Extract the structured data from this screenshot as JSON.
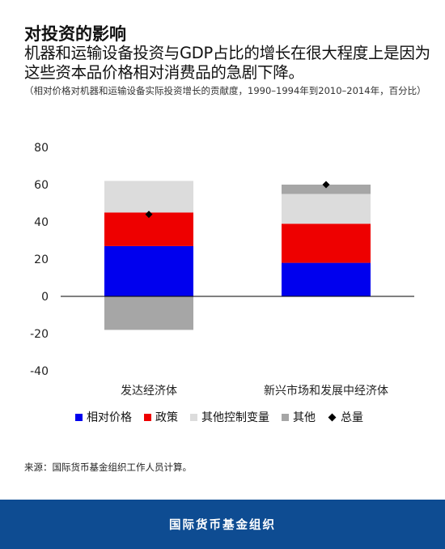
{
  "title": "对投资的影响",
  "subtitle": "机器和运输设备投资与GDP占比的增长在很大程度上是因为这些资本品价格相对消费品的急剧下降。",
  "note": "（相对价格对机器和运输设备实际投资增长的贡献度，1990–1994年到2010–2014年，百分比）",
  "source": "来源：国际货币基金组织工作人员计算。",
  "footer": "国际货币基金组织",
  "colors": {
    "relative_price": "#0000ee",
    "policy": "#ee0000",
    "other_controls": "#dcdcdc",
    "other": "#a6a6a6",
    "total": "#000000"
  },
  "chart_data": {
    "type": "bar",
    "stacked": true,
    "categories": [
      "发达经济体",
      "新兴市场和发展中经济体"
    ],
    "series": [
      {
        "name": "相对价格",
        "values": [
          27,
          18
        ],
        "color": "#0000ee"
      },
      {
        "name": "政策",
        "values": [
          18,
          21
        ],
        "color": "#ee0000"
      },
      {
        "name": "其他控制变量",
        "values": [
          17,
          16
        ],
        "color": "#dcdcdc"
      },
      {
        "name": "其他",
        "values": [
          -18,
          5
        ],
        "color": "#a6a6a6"
      }
    ],
    "total": {
      "name": "总量",
      "values": [
        44,
        60
      ],
      "marker": "diamond"
    },
    "ylim": [
      -40,
      80
    ],
    "yticks": [
      80,
      60,
      40,
      20,
      0,
      -20,
      -40
    ],
    "grid": false,
    "legend_position": "bottom"
  }
}
